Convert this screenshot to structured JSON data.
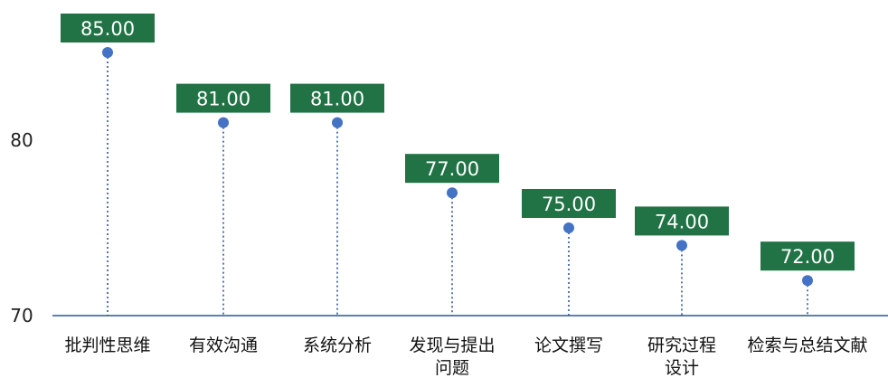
{
  "chart_data": {
    "type": "lollipop",
    "categories": [
      "批判性思维",
      "有效沟通",
      "系统分析",
      "发现与提出问题",
      "论文撰写",
      "研究过程设计",
      "检索与总结文献"
    ],
    "category_lines": [
      [
        "批判性思维"
      ],
      [
        "有效沟通"
      ],
      [
        "系统分析"
      ],
      [
        "发现与提出",
        "问题"
      ],
      [
        "论文撰写"
      ],
      [
        "研究过程",
        "设计"
      ],
      [
        "检索与总结文献"
      ]
    ],
    "values": [
      85.0,
      81.0,
      81.0,
      77.0,
      75.0,
      74.0,
      72.0
    ],
    "value_labels": [
      "85.00",
      "81.00",
      "81.00",
      "77.00",
      "75.00",
      "74.00",
      "72.00"
    ],
    "ylim": [
      70,
      87
    ],
    "yticks": [
      70,
      80
    ],
    "ytick_labels": [
      "70",
      "80"
    ],
    "grid": false,
    "colors": {
      "marker": "#4472c4",
      "stem": "#2f5597",
      "label_bg": "#217346",
      "label_text": "#ffffff",
      "axis": "#2f5597"
    }
  }
}
